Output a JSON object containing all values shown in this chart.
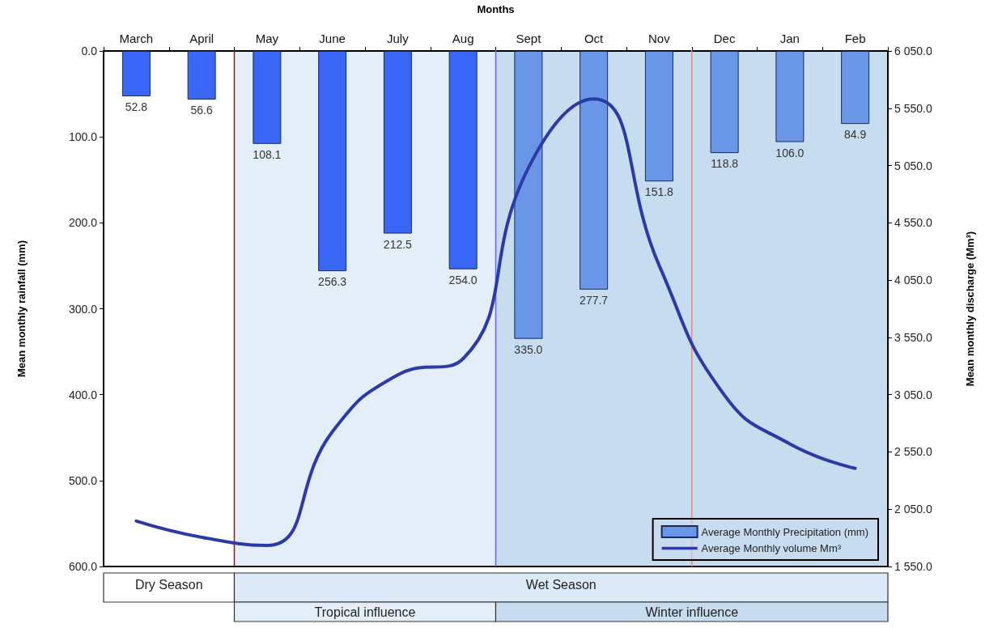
{
  "chart_data": {
    "type": "bar",
    "xlabel": "Months",
    "ylabel": "Mean monthly rainfall (mm)",
    "y2label": "Mean monthly discharge (Mm³)",
    "categories": [
      "March",
      "April",
      "May",
      "June",
      "July",
      "Aug",
      "Sept",
      "Oct",
      "Nov",
      "Dec",
      "Jan",
      "Feb"
    ],
    "series": [
      {
        "name": "Average Monthly Precipitation (mm)",
        "color": "#6a96e8",
        "colors": [
          "#3a66f5",
          "#3a66f5",
          "#3a66f5",
          "#3a66f5",
          "#3a66f5",
          "#3a66f5",
          "#6a96e8",
          "#6a96e8",
          "#6a96e8",
          "#6a96e8",
          "#6a96e8",
          "#6a96e8"
        ],
        "values": [
          52.8,
          56.6,
          108.1,
          256.3,
          212.5,
          254.0,
          335.0,
          277.7,
          151.8,
          118.8,
          106.0,
          84.9
        ],
        "value_labels": [
          "52.8",
          "56.6",
          "108.1",
          "256.3",
          "212.5",
          "254.0",
          "335.0",
          "277.7",
          "151.8",
          "118.8",
          "106.0",
          "84.9"
        ]
      },
      {
        "type": "line",
        "axis": "y2",
        "name": "Average Monthly volume Mm³",
        "color": "#2b3aa8",
        "values": [
          1947,
          1805,
          1734,
          2726,
          3222,
          3364,
          5030,
          5632,
          4179,
          3045,
          2620,
          2407
        ]
      }
    ],
    "ylim": [
      600,
      0
    ],
    "yticks": [
      {
        "value": 0,
        "label": "0.0"
      },
      {
        "value": 100,
        "label": "100.0"
      },
      {
        "value": 200,
        "label": "200.0"
      },
      {
        "value": 300,
        "label": "300.0"
      },
      {
        "value": 400,
        "label": "400.0"
      },
      {
        "value": 500,
        "label": "500.0"
      },
      {
        "value": 600,
        "label": "600.0"
      }
    ],
    "y2lim": [
      1550,
      6050
    ],
    "y2ticks": [
      {
        "value": 1550,
        "label": "1 550.0"
      },
      {
        "value": 2050,
        "label": "2 050.0"
      },
      {
        "value": 2550,
        "label": "2 550.0"
      },
      {
        "value": 3050,
        "label": "3 050.0"
      },
      {
        "value": 3550,
        "label": "3 550.0"
      },
      {
        "value": 4050,
        "label": "4 050.0"
      },
      {
        "value": 4550,
        "label": "4 550.0"
      },
      {
        "value": 5050,
        "label": "5 050.0"
      },
      {
        "value": 5550,
        "label": "5 550.0"
      },
      {
        "value": 6050,
        "label": "6 050.0"
      }
    ],
    "bands": [
      {
        "axis": "x",
        "from": "May",
        "to": "Aug",
        "label": "Tropical influence",
        "color": "#e3eef9"
      },
      {
        "axis": "x",
        "from": "Sept",
        "to": "Feb",
        "label": "Winter influence",
        "color": "#c8dcef"
      }
    ],
    "ref_lines": [
      {
        "axis": "x",
        "value": "May",
        "color": "#a01010"
      },
      {
        "axis": "x",
        "value": "Sept",
        "color": "#6a6ae8"
      },
      {
        "axis": "x",
        "value": "Dec",
        "color": "#e08a8a"
      }
    ],
    "annotations": [
      "Dry Season",
      "Wet Season"
    ],
    "legend": "bottom right"
  }
}
